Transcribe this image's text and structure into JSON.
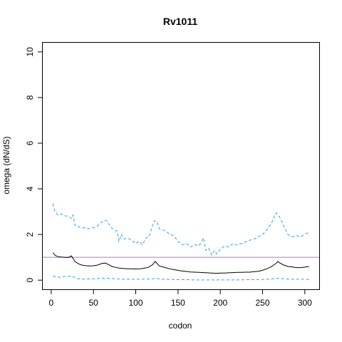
{
  "chart_data": {
    "type": "line",
    "title": "Rv1011",
    "xlabel": "codon",
    "ylabel": "omega (dN/dS)",
    "xlim": [
      -10,
      317
    ],
    "ylim": [
      -0.4,
      10.4
    ],
    "x_ticks": [
      0,
      50,
      100,
      150,
      200,
      250,
      300
    ],
    "y_ticks": [
      0,
      2,
      4,
      6,
      8,
      10
    ],
    "grid": false,
    "reference_line": {
      "y": 1,
      "color": "#C86CC8"
    },
    "colors": {
      "estimate": "#000000",
      "ci": "#29A3DA"
    },
    "series": [
      {
        "role": "estimate",
        "style": "solid",
        "x": [
          2,
          5,
          8,
          12,
          16,
          20,
          24,
          28,
          32,
          36,
          40,
          45,
          50,
          55,
          60,
          64,
          68,
          72,
          76,
          80,
          85,
          90,
          95,
          100,
          105,
          110,
          115,
          120,
          123,
          125,
          128,
          132,
          136,
          140,
          145,
          150,
          155,
          160,
          165,
          170,
          175,
          180,
          185,
          190,
          195,
          200,
          205,
          210,
          215,
          220,
          225,
          230,
          235,
          240,
          245,
          250,
          255,
          260,
          263,
          266,
          268,
          270,
          275,
          280,
          285,
          290,
          295,
          300,
          305
        ],
        "y": [
          1.2,
          1.08,
          1.03,
          1.01,
          1.0,
          0.99,
          1.06,
          0.82,
          0.72,
          0.66,
          0.64,
          0.62,
          0.63,
          0.66,
          0.73,
          0.75,
          0.68,
          0.6,
          0.56,
          0.53,
          0.51,
          0.5,
          0.5,
          0.49,
          0.5,
          0.52,
          0.56,
          0.68,
          0.82,
          0.74,
          0.62,
          0.58,
          0.54,
          0.5,
          0.46,
          0.43,
          0.4,
          0.38,
          0.36,
          0.35,
          0.34,
          0.33,
          0.32,
          0.31,
          0.3,
          0.31,
          0.31,
          0.32,
          0.33,
          0.34,
          0.34,
          0.35,
          0.35,
          0.37,
          0.39,
          0.43,
          0.5,
          0.58,
          0.66,
          0.73,
          0.82,
          0.76,
          0.66,
          0.6,
          0.58,
          0.55,
          0.55,
          0.57,
          0.6
        ]
      },
      {
        "role": "upper-ci",
        "style": "dashed",
        "x": [
          2,
          4,
          6,
          8,
          12,
          16,
          20,
          24,
          26,
          28,
          32,
          36,
          40,
          45,
          50,
          55,
          60,
          63,
          66,
          70,
          74,
          78,
          80,
          83,
          86,
          90,
          95,
          100,
          104,
          108,
          112,
          116,
          119,
          122,
          125,
          128,
          132,
          136,
          140,
          145,
          150,
          155,
          160,
          165,
          170,
          175,
          180,
          183,
          186,
          190,
          193,
          196,
          200,
          205,
          210,
          215,
          220,
          225,
          230,
          235,
          240,
          245,
          250,
          255,
          260,
          263,
          266,
          268,
          270,
          273,
          276,
          280,
          285,
          290,
          295,
          300,
          305
        ],
        "y": [
          3.35,
          3.05,
          2.95,
          2.85,
          2.9,
          2.82,
          2.8,
          2.7,
          2.85,
          2.4,
          2.35,
          2.28,
          2.3,
          2.25,
          2.3,
          2.38,
          2.55,
          2.62,
          2.6,
          2.35,
          2.2,
          2.15,
          1.7,
          2.0,
          1.8,
          1.85,
          1.75,
          1.6,
          1.7,
          1.55,
          1.85,
          1.9,
          2.3,
          2.6,
          2.58,
          2.25,
          2.2,
          2.15,
          2.0,
          1.95,
          1.7,
          1.55,
          1.6,
          1.45,
          1.55,
          1.5,
          1.85,
          1.3,
          1.4,
          1.1,
          1.3,
          1.15,
          1.35,
          1.5,
          1.45,
          1.6,
          1.55,
          1.6,
          1.68,
          1.75,
          1.8,
          1.9,
          2.0,
          2.2,
          2.45,
          2.7,
          2.95,
          2.85,
          2.78,
          2.55,
          2.3,
          2.0,
          1.9,
          1.95,
          1.9,
          2.0,
          2.1
        ]
      },
      {
        "role": "lower-ci",
        "style": "dashed",
        "x": [
          2,
          5,
          10,
          15,
          20,
          24,
          28,
          32,
          36,
          40,
          50,
          60,
          64,
          70,
          80,
          90,
          100,
          110,
          120,
          124,
          128,
          140,
          150,
          160,
          170,
          180,
          190,
          200,
          210,
          220,
          230,
          240,
          250,
          260,
          266,
          270,
          280,
          290,
          300,
          305
        ],
        "y": [
          0.18,
          0.14,
          0.13,
          0.15,
          0.17,
          0.18,
          0.12,
          0.06,
          0.05,
          0.05,
          0.06,
          0.08,
          0.09,
          0.07,
          0.05,
          0.04,
          0.04,
          0.04,
          0.06,
          0.08,
          0.05,
          0.03,
          0.02,
          0.02,
          0.01,
          0.01,
          0.01,
          0.01,
          0.01,
          0.01,
          0.02,
          0.02,
          0.03,
          0.05,
          0.08,
          0.07,
          0.05,
          0.04,
          0.04,
          0.03
        ]
      }
    ]
  }
}
